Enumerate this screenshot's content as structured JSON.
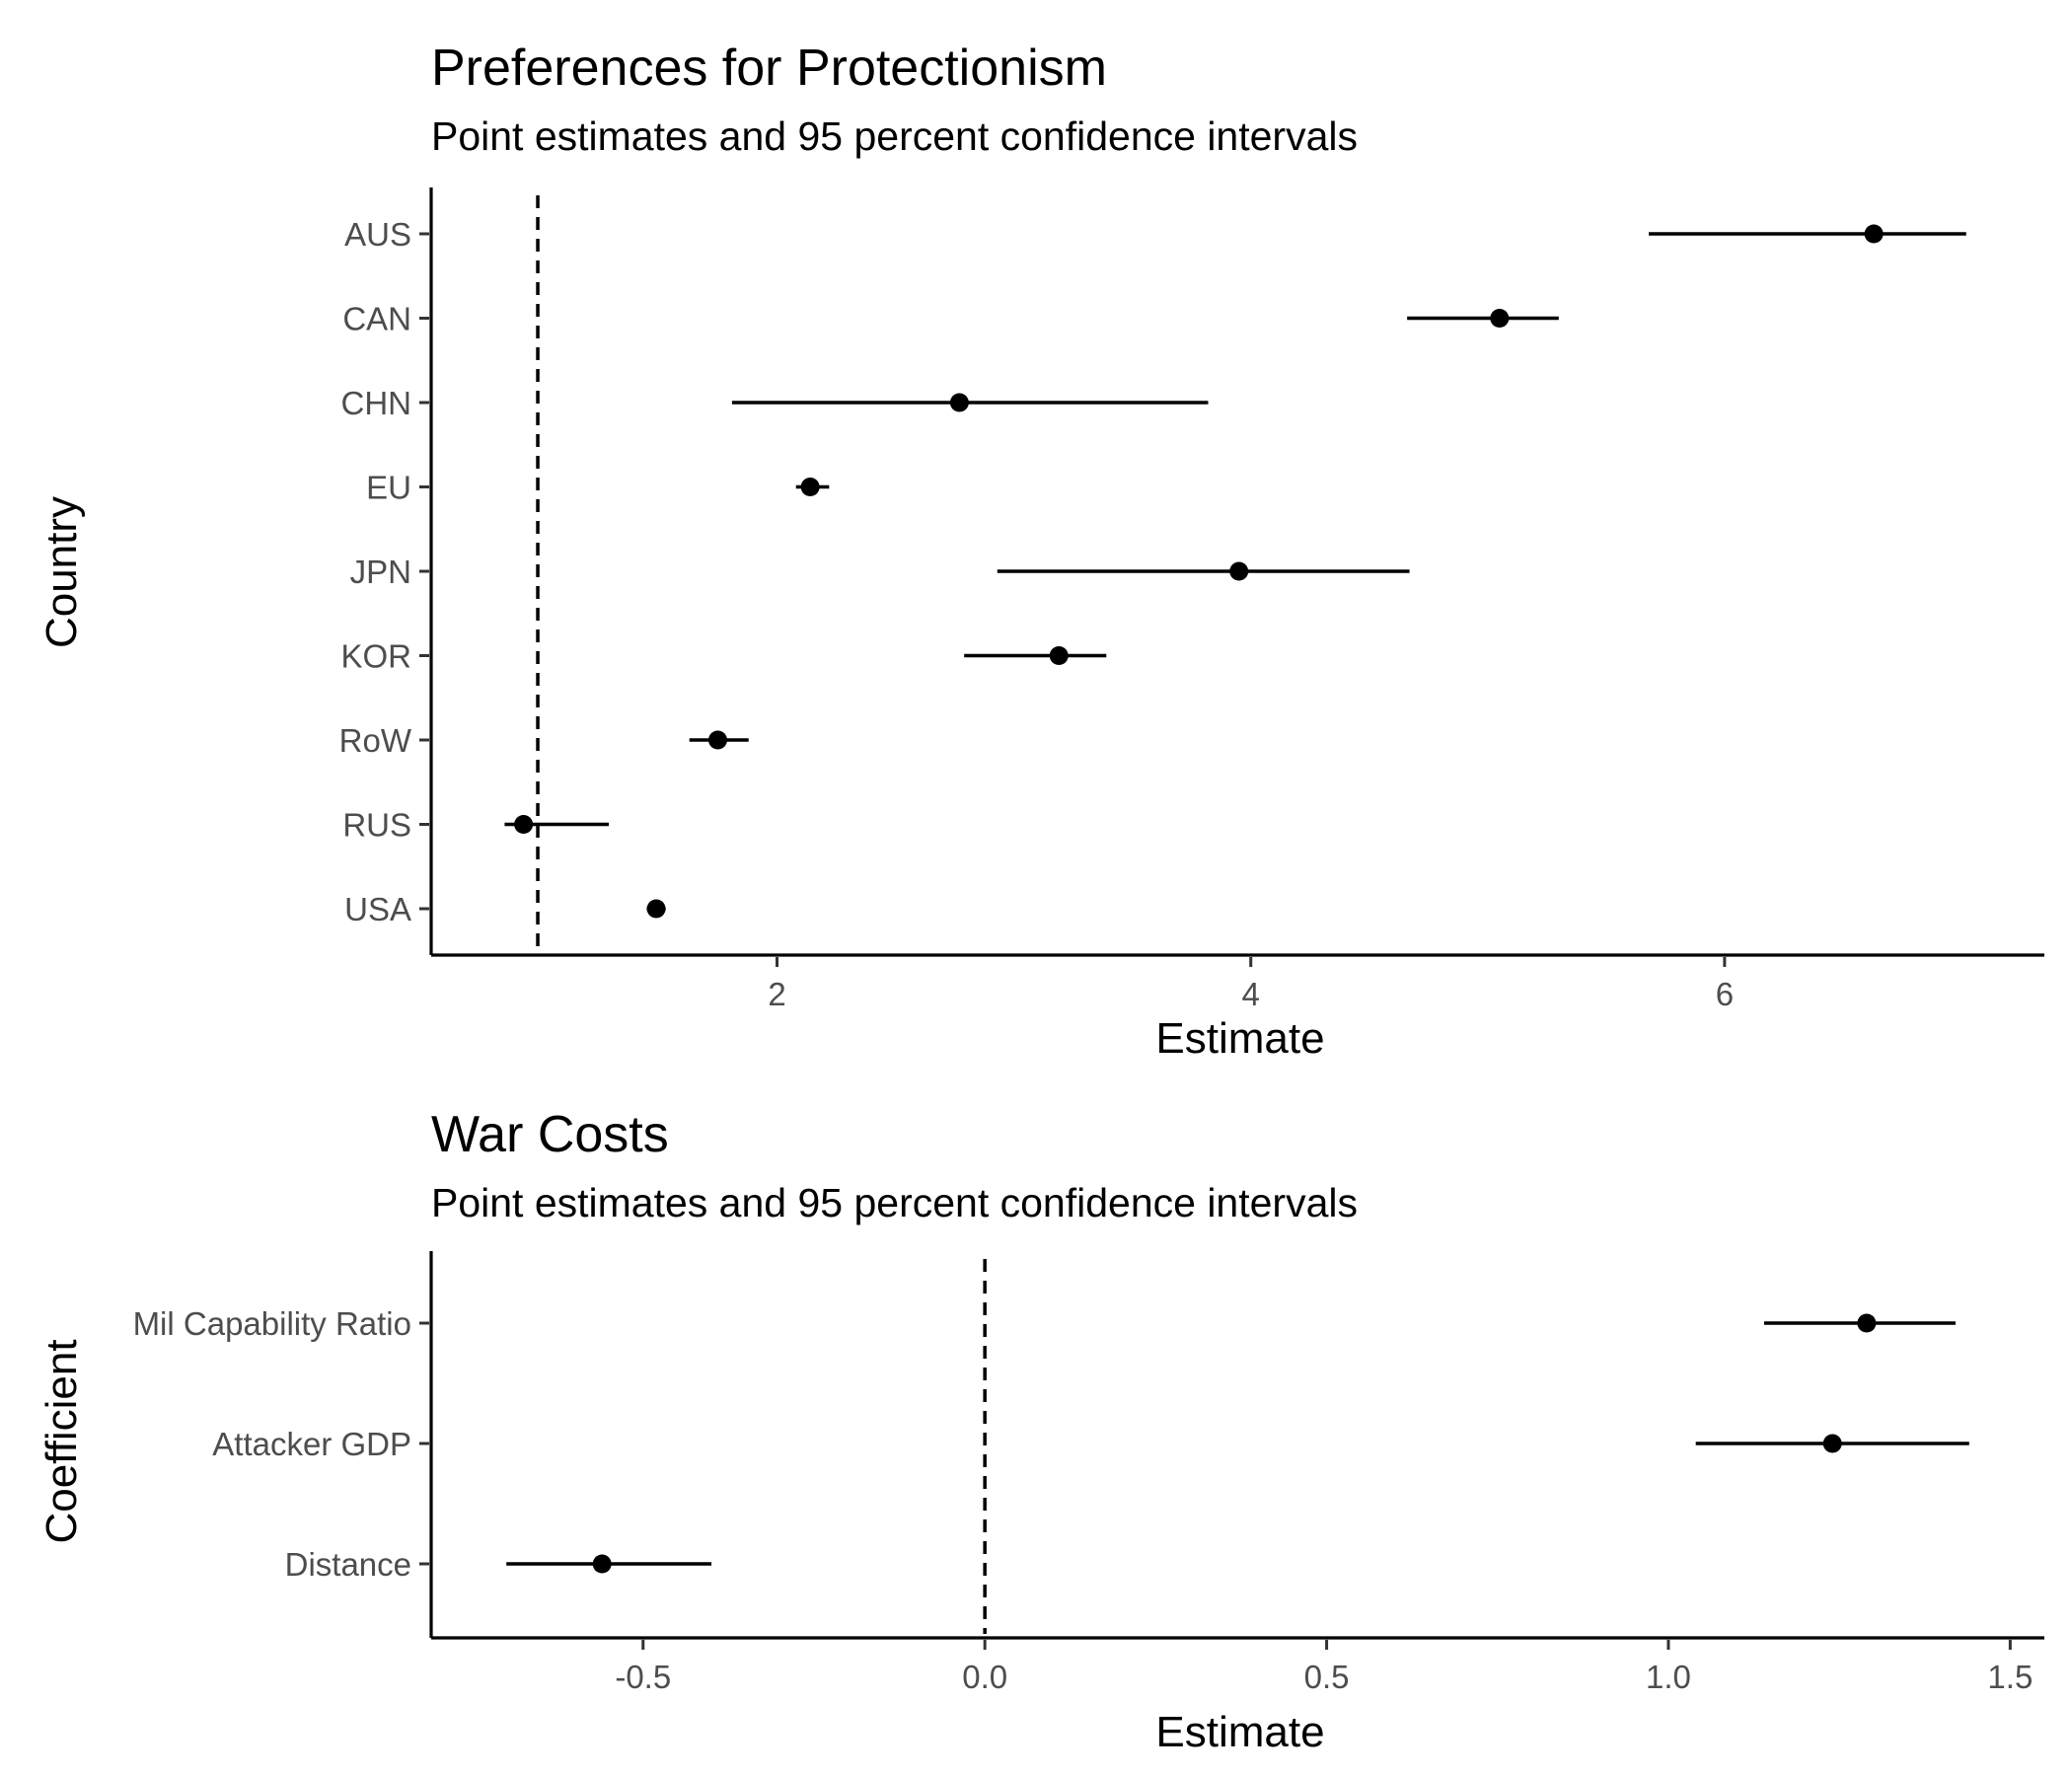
{
  "chart_data": [
    {
      "type": "scatter",
      "title": "Preferences for Protectionism",
      "subtitle": "Point estimates and 95 percent confidence intervals",
      "xlabel": "Estimate",
      "ylabel": "Country",
      "xlim": [
        0.54,
        7.35
      ],
      "xticks": [
        "2",
        "4",
        "6"
      ],
      "reference_x": 0.99,
      "grid": false,
      "legend": "none",
      "points": [
        {
          "label": "AUS",
          "estimate": 6.63,
          "lower": 5.68,
          "upper": 7.02
        },
        {
          "label": "CAN",
          "estimate": 5.05,
          "lower": 4.66,
          "upper": 5.3
        },
        {
          "label": "CHN",
          "estimate": 2.77,
          "lower": 1.81,
          "upper": 3.82
        },
        {
          "label": "EU",
          "estimate": 2.14,
          "lower": 2.08,
          "upper": 2.22
        },
        {
          "label": "JPN",
          "estimate": 3.95,
          "lower": 2.93,
          "upper": 4.67
        },
        {
          "label": "KOR",
          "estimate": 3.19,
          "lower": 2.79,
          "upper": 3.39
        },
        {
          "label": "RoW",
          "estimate": 1.75,
          "lower": 1.63,
          "upper": 1.88
        },
        {
          "label": "RUS",
          "estimate": 0.93,
          "lower": 0.85,
          "upper": 1.29
        },
        {
          "label": "USA",
          "estimate": 1.49,
          "lower": 1.45,
          "upper": 1.53
        }
      ]
    },
    {
      "type": "scatter",
      "title": "War Costs",
      "subtitle": "Point estimates and 95 percent confidence intervals",
      "xlabel": "Estimate",
      "ylabel": "Coefficient",
      "xlim": [
        -0.81,
        1.55
      ],
      "xticks": [
        "-0.5",
        "0.0",
        "0.5",
        "1.0",
        "1.5"
      ],
      "reference_x": 0.0,
      "grid": false,
      "legend": "none",
      "points": [
        {
          "label": "Mil Capability Ratio",
          "estimate": 1.29,
          "lower": 1.14,
          "upper": 1.42
        },
        {
          "label": "Attacker GDP",
          "estimate": 1.24,
          "lower": 1.04,
          "upper": 1.44
        },
        {
          "label": "Distance",
          "estimate": -0.56,
          "lower": -0.7,
          "upper": -0.4
        }
      ]
    }
  ]
}
